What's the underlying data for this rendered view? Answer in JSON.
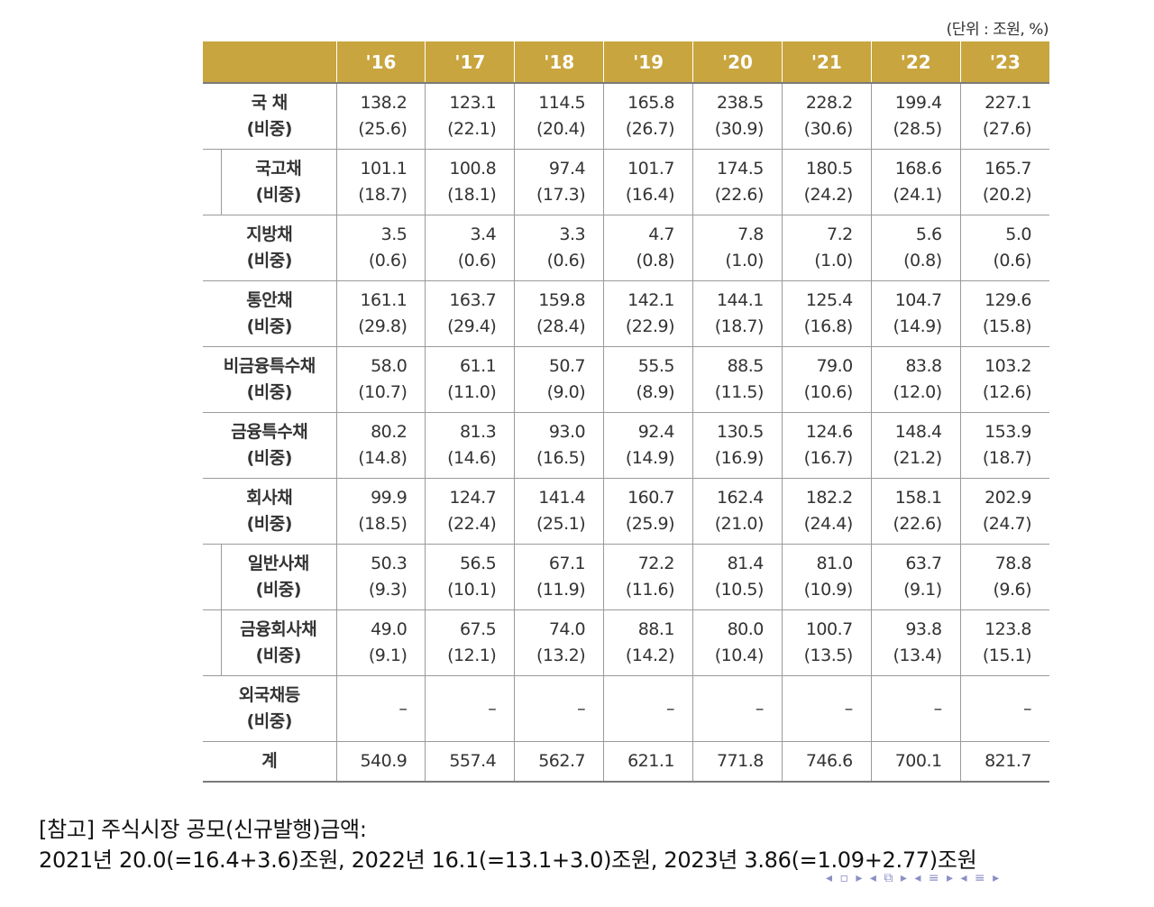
{
  "unit_note": "(단위 : 조원, %)",
  "table": {
    "headers": [
      "",
      "'16",
      "'17",
      "'18",
      "'19",
      "'20",
      "'21",
      "'22",
      "'23"
    ],
    "rows": [
      {
        "label": "국 채",
        "sublabel": "(비중)",
        "sub": false,
        "values": [
          "138.2",
          "123.1",
          "114.5",
          "165.8",
          "238.5",
          "228.2",
          "199.4",
          "227.1"
        ],
        "shares": [
          "(25.6)",
          "(22.1)",
          "(20.4)",
          "(26.7)",
          "(30.9)",
          "(30.6)",
          "(28.5)",
          "(27.6)"
        ]
      },
      {
        "label": "국고채",
        "sublabel": "(비중)",
        "sub": true,
        "values": [
          "101.1",
          "100.8",
          "97.4",
          "101.7",
          "174.5",
          "180.5",
          "168.6",
          "165.7"
        ],
        "shares": [
          "(18.7)",
          "(18.1)",
          "(17.3)",
          "(16.4)",
          "(22.6)",
          "(24.2)",
          "(24.1)",
          "(20.2)"
        ]
      },
      {
        "label": "지방채",
        "sublabel": "(비중)",
        "sub": false,
        "values": [
          "3.5",
          "3.4",
          "3.3",
          "4.7",
          "7.8",
          "7.2",
          "5.6",
          "5.0"
        ],
        "shares": [
          "(0.6)",
          "(0.6)",
          "(0.6)",
          "(0.8)",
          "(1.0)",
          "(1.0)",
          "(0.8)",
          "(0.6)"
        ]
      },
      {
        "label": "통안채",
        "sublabel": "(비중)",
        "sub": false,
        "values": [
          "161.1",
          "163.7",
          "159.8",
          "142.1",
          "144.1",
          "125.4",
          "104.7",
          "129.6"
        ],
        "shares": [
          "(29.8)",
          "(29.4)",
          "(28.4)",
          "(22.9)",
          "(18.7)",
          "(16.8)",
          "(14.9)",
          "(15.8)"
        ]
      },
      {
        "label": "비금융특수채",
        "sublabel": "(비중)",
        "sub": false,
        "values": [
          "58.0",
          "61.1",
          "50.7",
          "55.5",
          "88.5",
          "79.0",
          "83.8",
          "103.2"
        ],
        "shares": [
          "(10.7)",
          "(11.0)",
          "(9.0)",
          "(8.9)",
          "(11.5)",
          "(10.6)",
          "(12.0)",
          "(12.6)"
        ]
      },
      {
        "label": "금융특수채",
        "sublabel": "(비중)",
        "sub": false,
        "values": [
          "80.2",
          "81.3",
          "93.0",
          "92.4",
          "130.5",
          "124.6",
          "148.4",
          "153.9"
        ],
        "shares": [
          "(14.8)",
          "(14.6)",
          "(16.5)",
          "(14.9)",
          "(16.9)",
          "(16.7)",
          "(21.2)",
          "(18.7)"
        ]
      },
      {
        "label": "회사채",
        "sublabel": "(비중)",
        "sub": false,
        "values": [
          "99.9",
          "124.7",
          "141.4",
          "160.7",
          "162.4",
          "182.2",
          "158.1",
          "202.9"
        ],
        "shares": [
          "(18.5)",
          "(22.4)",
          "(25.1)",
          "(25.9)",
          "(21.0)",
          "(24.4)",
          "(22.6)",
          "(24.7)"
        ]
      },
      {
        "label": "일반사채",
        "sublabel": "(비중)",
        "sub": true,
        "values": [
          "50.3",
          "56.5",
          "67.1",
          "72.2",
          "81.4",
          "81.0",
          "63.7",
          "78.8"
        ],
        "shares": [
          "(9.3)",
          "(10.1)",
          "(11.9)",
          "(11.6)",
          "(10.5)",
          "(10.9)",
          "(9.1)",
          "(9.6)"
        ]
      },
      {
        "label": "금융회사채",
        "sublabel": "(비중)",
        "sub": true,
        "values": [
          "49.0",
          "67.5",
          "74.0",
          "88.1",
          "80.0",
          "100.7",
          "93.8",
          "123.8"
        ],
        "shares": [
          "(9.1)",
          "(12.1)",
          "(13.2)",
          "(14.2)",
          "(10.4)",
          "(13.5)",
          "(13.4)",
          "(15.1)"
        ]
      },
      {
        "label": "외국채등",
        "sublabel": "(비중)",
        "sub": false,
        "values": [
          "–",
          "–",
          "–",
          "–",
          "–",
          "–",
          "–",
          "–"
        ],
        "shares": [
          "",
          "",
          "",
          "",
          "",
          "",
          "",
          ""
        ]
      }
    ],
    "total": {
      "label": "계",
      "values": [
        "540.9",
        "557.4",
        "562.7",
        "621.1",
        "771.8",
        "746.6",
        "700.1",
        "821.7"
      ]
    }
  },
  "note": {
    "line1": "[참고] 주식시장 공모(신규발행)금액:",
    "line2": "2021년 20.0(=16.4+3.6)조원, 2022년 16.1(=13.1+3.0)조원, 2023년 3.86(=1.09+2.77)조원"
  },
  "nav_icons": [
    "nav-prev-frame-icon",
    "nav-next-frame-icon",
    "nav-prev-slide-icon",
    "nav-next-slide-icon",
    "nav-prev-section-icon",
    "nav-next-section-icon"
  ],
  "colors": {
    "header_bg": "#c8a53e",
    "header_text": "#ffffff",
    "nav": "#8b8fc6"
  }
}
